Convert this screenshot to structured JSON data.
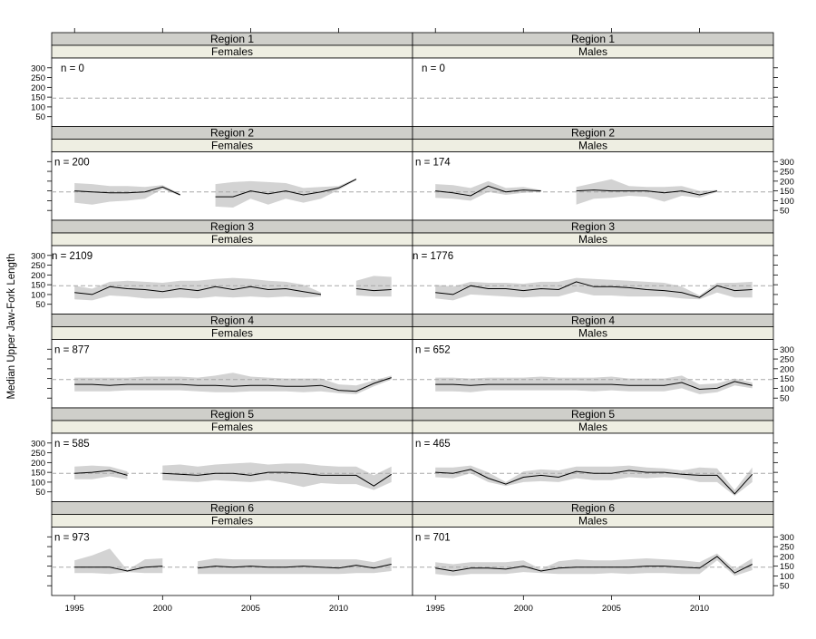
{
  "chart_data": {
    "type": "line",
    "ylabel": "Median Upper Jaw-Fork Length",
    "x_ticks": [
      1995,
      2000,
      2005,
      2010
    ],
    "y_ticks": [
      50,
      100,
      150,
      200,
      250,
      300
    ],
    "xlim": [
      1993.7,
      2014.2
    ],
    "ylim": [
      0,
      350
    ],
    "reference_line": 145,
    "band_color": "#d3d3d3",
    "line_color": "#000000",
    "ref_color": "#a8a8a8",
    "panels": [
      {
        "region": "Region 1",
        "sex": "Females",
        "n_label": "n = 0",
        "x": [],
        "median": [],
        "lower": [],
        "upper": []
      },
      {
        "region": "Region 1",
        "sex": "Males",
        "n_label": "n = 0",
        "x": [],
        "median": [],
        "lower": [],
        "upper": []
      },
      {
        "region": "Region 2",
        "sex": "Females",
        "n_label": "n = 200",
        "x": [
          1995,
          1996,
          1997,
          1998,
          1999,
          2000,
          2001,
          null,
          2003,
          2004,
          2005,
          2006,
          2007,
          2008,
          2009,
          2010,
          2011
        ],
        "median": [
          150,
          145,
          140,
          140,
          145,
          170,
          130,
          null,
          120,
          120,
          150,
          135,
          150,
          130,
          145,
          165,
          210
        ],
        "lower": [
          90,
          80,
          95,
          100,
          110,
          160,
          125,
          null,
          70,
          65,
          110,
          80,
          110,
          90,
          110,
          155,
          205
        ],
        "upper": [
          190,
          185,
          175,
          175,
          170,
          180,
          135,
          null,
          185,
          195,
          200,
          195,
          190,
          165,
          170,
          175,
          215
        ]
      },
      {
        "region": "Region 2",
        "sex": "Males",
        "n_label": "n = 174",
        "x": [
          1995,
          1996,
          1997,
          1998,
          1999,
          2000,
          2001,
          null,
          2003,
          2004,
          2005,
          2006,
          2007,
          2008,
          2009,
          2010,
          2011
        ],
        "median": [
          150,
          140,
          125,
          175,
          145,
          155,
          150,
          null,
          150,
          155,
          150,
          150,
          150,
          140,
          150,
          130,
          150
        ],
        "lower": [
          115,
          110,
          100,
          145,
          130,
          140,
          145,
          null,
          80,
          110,
          115,
          125,
          120,
          95,
          125,
          115,
          145
        ],
        "upper": [
          185,
          180,
          165,
          200,
          165,
          170,
          155,
          null,
          170,
          190,
          210,
          175,
          170,
          170,
          175,
          150,
          155
        ]
      },
      {
        "region": "Region 3",
        "sex": "Females",
        "n_label": "n = 2109",
        "x": [
          1995,
          1996,
          1997,
          1998,
          1999,
          2000,
          2001,
          2002,
          2003,
          2004,
          2005,
          2006,
          2007,
          2008,
          2009,
          null,
          2011,
          2012,
          2013
        ],
        "median": [
          110,
          100,
          140,
          130,
          125,
          115,
          130,
          120,
          140,
          125,
          140,
          125,
          130,
          115,
          100,
          null,
          130,
          120,
          125
        ],
        "lower": [
          75,
          70,
          95,
          90,
          80,
          80,
          85,
          80,
          90,
          85,
          90,
          85,
          90,
          85,
          90,
          null,
          95,
          90,
          90
        ],
        "upper": [
          145,
          130,
          165,
          170,
          165,
          160,
          170,
          170,
          180,
          185,
          180,
          170,
          165,
          150,
          110,
          null,
          170,
          195,
          190
        ]
      },
      {
        "region": "Region 3",
        "sex": "Males",
        "n_label": "n = 1776",
        "x": [
          1995,
          1996,
          1997,
          1998,
          1999,
          2000,
          2001,
          2002,
          2003,
          2004,
          2005,
          2006,
          2007,
          2008,
          2009,
          2010,
          2011,
          2012,
          2013
        ],
        "median": [
          110,
          100,
          145,
          130,
          130,
          120,
          130,
          125,
          165,
          140,
          140,
          135,
          125,
          120,
          110,
          85,
          145,
          120,
          125
        ],
        "lower": [
          80,
          70,
          100,
          95,
          90,
          85,
          90,
          90,
          115,
          95,
          95,
          90,
          90,
          90,
          80,
          75,
          110,
          85,
          85
        ],
        "upper": [
          150,
          140,
          165,
          160,
          160,
          155,
          165,
          165,
          185,
          180,
          175,
          170,
          165,
          160,
          140,
          95,
          160,
          160,
          165
        ]
      },
      {
        "region": "Region 4",
        "sex": "Females",
        "n_label": "n = 877",
        "x": [
          1995,
          1996,
          1997,
          1998,
          1999,
          2000,
          2001,
          2002,
          2003,
          2004,
          2005,
          2006,
          2007,
          2008,
          2009,
          2010,
          2011,
          2012,
          2013
        ],
        "median": [
          120,
          120,
          115,
          120,
          120,
          120,
          120,
          115,
          115,
          110,
          115,
          115,
          110,
          110,
          115,
          90,
          85,
          125,
          155
        ],
        "lower": [
          85,
          85,
          85,
          90,
          90,
          90,
          90,
          85,
          80,
          80,
          85,
          85,
          85,
          80,
          85,
          75,
          70,
          110,
          145
        ],
        "upper": [
          155,
          155,
          155,
          155,
          160,
          160,
          160,
          155,
          165,
          180,
          160,
          155,
          150,
          150,
          150,
          120,
          115,
          140,
          165
        ]
      },
      {
        "region": "Region 4",
        "sex": "Males",
        "n_label": "n = 652",
        "x": [
          1995,
          1996,
          1997,
          1998,
          1999,
          2000,
          2001,
          2002,
          2003,
          2004,
          2005,
          2006,
          2007,
          2008,
          2009,
          2010,
          2011,
          2012,
          2013
        ],
        "median": [
          120,
          120,
          115,
          120,
          120,
          120,
          120,
          120,
          120,
          120,
          120,
          115,
          115,
          115,
          130,
          95,
          100,
          135,
          115
        ],
        "lower": [
          85,
          85,
          80,
          90,
          90,
          90,
          90,
          90,
          90,
          85,
          90,
          85,
          85,
          85,
          100,
          70,
          80,
          115,
          100
        ],
        "upper": [
          155,
          155,
          150,
          155,
          155,
          155,
          160,
          155,
          155,
          155,
          160,
          150,
          150,
          150,
          165,
          120,
          125,
          150,
          130
        ]
      },
      {
        "region": "Region 5",
        "sex": "Females",
        "n_label": "n = 585",
        "x": [
          1995,
          1996,
          1997,
          1998,
          null,
          2000,
          2001,
          2002,
          2003,
          2004,
          2005,
          2006,
          2007,
          2008,
          2009,
          2010,
          2011,
          2012,
          2013
        ],
        "median": [
          145,
          150,
          160,
          135,
          null,
          145,
          140,
          135,
          145,
          145,
          135,
          150,
          150,
          145,
          135,
          135,
          135,
          80,
          140
        ],
        "lower": [
          115,
          115,
          130,
          115,
          null,
          110,
          105,
          100,
          110,
          105,
          100,
          110,
          95,
          75,
          95,
          90,
          90,
          60,
          100
        ],
        "upper": [
          180,
          185,
          180,
          155,
          null,
          185,
          190,
          180,
          190,
          195,
          200,
          190,
          195,
          195,
          185,
          180,
          180,
          135,
          180
        ]
      },
      {
        "region": "Region 5",
        "sex": "Males",
        "n_label": "n = 465",
        "x": [
          1995,
          1996,
          1997,
          1998,
          1999,
          2000,
          2001,
          2002,
          2003,
          2004,
          2005,
          2006,
          2007,
          2008,
          2009,
          2010,
          2011,
          2012,
          2013
        ],
        "median": [
          150,
          145,
          165,
          120,
          90,
          125,
          135,
          125,
          155,
          145,
          145,
          160,
          150,
          150,
          140,
          135,
          135,
          40,
          140
        ],
        "lower": [
          125,
          120,
          145,
          100,
          80,
          100,
          105,
          100,
          120,
          110,
          110,
          125,
          120,
          125,
          120,
          100,
          100,
          30,
          100
        ],
        "upper": [
          175,
          175,
          185,
          150,
          100,
          155,
          165,
          160,
          180,
          180,
          180,
          185,
          175,
          170,
          160,
          175,
          170,
          60,
          175
        ]
      },
      {
        "region": "Region 6",
        "sex": "Females",
        "n_label": "n = 973",
        "x": [
          1995,
          1996,
          1997,
          1998,
          1999,
          2000,
          null,
          2002,
          2003,
          2004,
          2005,
          2006,
          2007,
          2008,
          2009,
          2010,
          2011,
          2012,
          2013
        ],
        "median": [
          145,
          145,
          145,
          125,
          145,
          150,
          null,
          140,
          150,
          145,
          150,
          145,
          145,
          150,
          145,
          140,
          155,
          140,
          160
        ],
        "lower": [
          115,
          115,
          110,
          120,
          115,
          115,
          null,
          110,
          110,
          110,
          110,
          110,
          110,
          110,
          110,
          110,
          115,
          115,
          125
        ],
        "upper": [
          180,
          205,
          240,
          130,
          185,
          190,
          null,
          175,
          190,
          185,
          185,
          185,
          185,
          185,
          185,
          185,
          185,
          170,
          195
        ]
      },
      {
        "region": "Region 6",
        "sex": "Males",
        "n_label": "n = 701",
        "x": [
          1995,
          1996,
          1997,
          1998,
          1999,
          2000,
          2001,
          2002,
          2003,
          2004,
          2005,
          2006,
          2007,
          2008,
          2009,
          2010,
          2011,
          2012,
          2013
        ],
        "median": [
          140,
          125,
          140,
          140,
          135,
          150,
          125,
          140,
          145,
          145,
          145,
          145,
          150,
          150,
          145,
          140,
          200,
          115,
          160
        ],
        "lower": [
          110,
          100,
          110,
          110,
          110,
          120,
          115,
          110,
          110,
          110,
          115,
          110,
          115,
          115,
          110,
          110,
          180,
          100,
          130
        ],
        "upper": [
          170,
          160,
          170,
          170,
          170,
          180,
          135,
          175,
          185,
          180,
          180,
          185,
          190,
          185,
          180,
          170,
          215,
          135,
          190
        ]
      }
    ]
  }
}
